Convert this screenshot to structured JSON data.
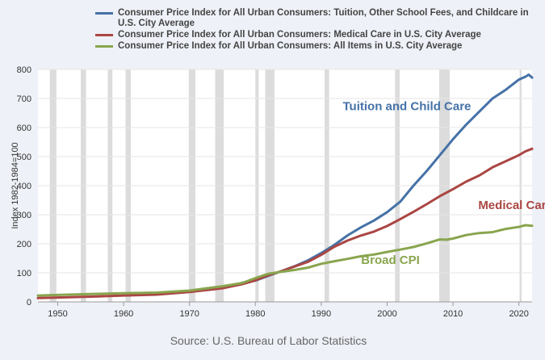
{
  "chart_data": {
    "type": "line",
    "title": "",
    "xlabel": "",
    "ylabel": "Index 1982-1984=100",
    "xlim": [
      1947,
      2022
    ],
    "ylim": [
      0,
      800
    ],
    "xticks": [
      1950,
      1960,
      1970,
      1980,
      1990,
      2000,
      2010,
      2020
    ],
    "yticks": [
      0,
      100,
      200,
      300,
      400,
      500,
      600,
      700,
      800
    ],
    "grid": true,
    "legend_position": "top",
    "recessions": [
      [
        1948.8,
        1949.8
      ],
      [
        1953.5,
        1954.3
      ],
      [
        1957.6,
        1958.3
      ],
      [
        1960.3,
        1961.1
      ],
      [
        1969.9,
        1970.9
      ],
      [
        1973.9,
        1975.2
      ],
      [
        1980.0,
        1980.5
      ],
      [
        1981.5,
        1982.9
      ],
      [
        1990.5,
        1991.2
      ],
      [
        2001.2,
        2001.9
      ],
      [
        2007.9,
        2009.5
      ],
      [
        2020.1,
        2020.4
      ]
    ],
    "series": [
      {
        "name": "Consumer Price Index for All Urban Consumers: Tuition, Other School Fees, and Childcare in U.S. City Average",
        "label": "Tuition and Child Care",
        "color": "#4572a7",
        "x": [
          1978,
          1980,
          1982,
          1984,
          1986,
          1988,
          1990,
          1992,
          1994,
          1996,
          1998,
          2000,
          2002,
          2004,
          2006,
          2008,
          2010,
          2012,
          2014,
          2016,
          2018,
          2020,
          2021,
          2021.5,
          2022
        ],
        "values": [
          66,
          73,
          90,
          106,
          123,
          143,
          168,
          196,
          229,
          256,
          280,
          309,
          345,
          400,
          450,
          505,
          560,
          610,
          655,
          700,
          730,
          765,
          775,
          782,
          772
        ]
      },
      {
        "name": "Consumer Price Index for All Urban Consumers: Medical Care in U.S. City Average",
        "label": "Medical Care",
        "color": "#aa4643",
        "x": [
          1947,
          1950,
          1955,
          1960,
          1965,
          1970,
          1975,
          1978,
          1980,
          1982,
          1984,
          1986,
          1988,
          1990,
          1992,
          1994,
          1996,
          1998,
          2000,
          2002,
          2004,
          2006,
          2008,
          2010,
          2012,
          2014,
          2016,
          2018,
          2020,
          2021,
          2022
        ],
        "values": [
          13,
          15,
          18,
          22,
          25,
          34,
          47,
          61,
          74,
          92,
          106,
          122,
          138,
          162,
          190,
          211,
          228,
          242,
          261,
          285,
          310,
          336,
          364,
          388,
          414,
          435,
          463,
          484,
          505,
          518,
          527
        ]
      },
      {
        "name": "Consumer Price Index for All Urban Consumers: All Items in U.S. City Average",
        "label": "Broad CPI",
        "color": "#89a54e",
        "x": [
          1947,
          1950,
          1955,
          1960,
          1965,
          1970,
          1975,
          1978,
          1980,
          1982,
          1984,
          1986,
          1988,
          1990,
          1992,
          1994,
          1996,
          1998,
          2000,
          2002,
          2004,
          2006,
          2008,
          2009,
          2010,
          2012,
          2014,
          2016,
          2018,
          2020,
          2021,
          2022
        ],
        "values": [
          22,
          24,
          27,
          30,
          32,
          39,
          54,
          65,
          82,
          97,
          104,
          110,
          118,
          131,
          140,
          148,
          157,
          163,
          172,
          180,
          189,
          201,
          215,
          214,
          218,
          230,
          237,
          240,
          251,
          258,
          264,
          262
        ]
      }
    ]
  },
  "source": "Source: U.S. Bureau of Labor Statistics"
}
